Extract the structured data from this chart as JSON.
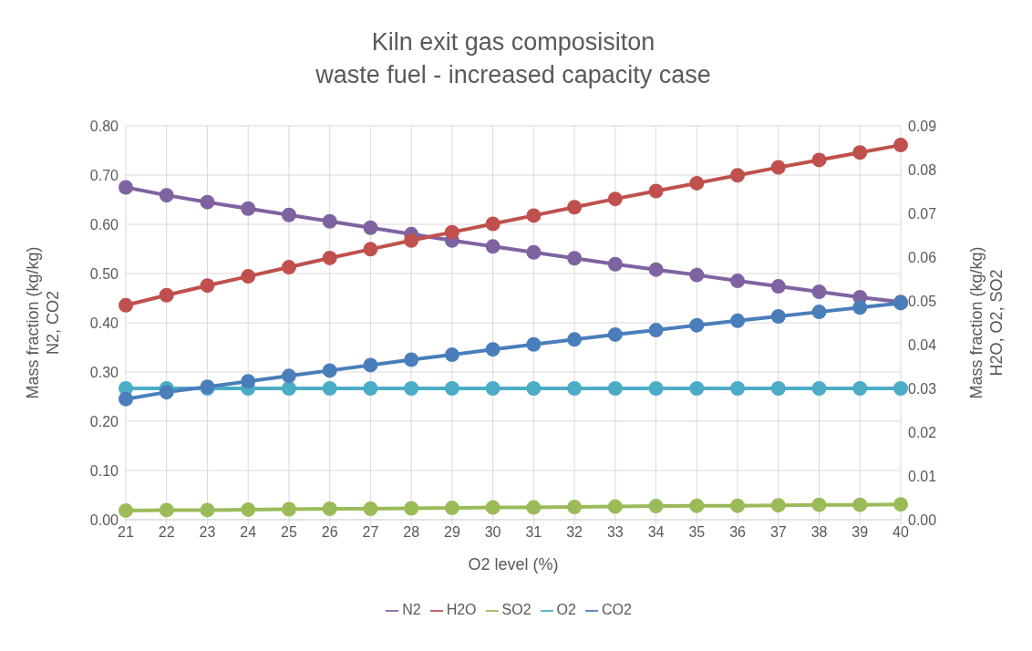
{
  "chart_data": {
    "type": "line",
    "title": "Kiln exit gas composisiton",
    "subtitle": "waste fuel - increased capacity case",
    "xlabel": "O2 level (%)",
    "ylabel": "Mass fraction (kg/kg)\nN2, CO2",
    "y2label": "Mass fraction (kg/kg)\nH2O, O2, SO2",
    "categories": [
      "21",
      "22",
      "23",
      "24",
      "25",
      "26",
      "27",
      "28",
      "29",
      "30",
      "31",
      "32",
      "33",
      "34",
      "35",
      "36",
      "37",
      "38",
      "39",
      "40"
    ],
    "series": [
      {
        "name": "CO2",
        "color": "#4a7ebb",
        "values": [
          0.245,
          0.259,
          0.27,
          0.281,
          0.292,
          0.303,
          0.314,
          0.325,
          0.335,
          0.346,
          0.356,
          0.366,
          0.376,
          0.385,
          0.395,
          0.404,
          0.413,
          0.422,
          0.431,
          0.44
        ]
      },
      {
        "name": "N2",
        "color": "#7f63a1",
        "values": [
          0.675,
          0.659,
          0.645,
          0.632,
          0.619,
          0.606,
          0.593,
          0.58,
          0.567,
          0.555,
          0.543,
          0.531,
          0.519,
          0.508,
          0.497,
          0.485,
          0.474,
          0.463,
          0.452,
          0.442
        ]
      },
      {
        "name": "H2O",
        "color": "#c0504d",
        "axis": "y2",
        "values": [
          0.049,
          0.0513,
          0.0535,
          0.0556,
          0.0577,
          0.0598,
          0.0618,
          0.0638,
          0.0657,
          0.0676,
          0.0695,
          0.0714,
          0.0733,
          0.0751,
          0.0769,
          0.0787,
          0.0805,
          0.0822,
          0.0839,
          0.0856
        ]
      },
      {
        "name": "SO2",
        "color": "#9bbb59",
        "axis": "y2",
        "values": [
          0.0021,
          0.0022,
          0.0022,
          0.0023,
          0.0024,
          0.0025,
          0.0025,
          0.0026,
          0.0027,
          0.0028,
          0.0028,
          0.0029,
          0.003,
          0.0031,
          0.0032,
          0.0032,
          0.0033,
          0.0034,
          0.0034,
          0.0035
        ]
      },
      {
        "name": "O2",
        "color": "#4bacc6",
        "axis": "y2",
        "values": [
          0.03,
          0.03,
          0.03,
          0.03,
          0.03,
          0.03,
          0.03,
          0.03,
          0.03,
          0.03,
          0.03,
          0.03,
          0.03,
          0.03,
          0.03,
          0.03,
          0.03,
          0.03,
          0.03,
          0.03
        ]
      }
    ],
    "ylim": [
      0,
      0.8
    ],
    "yticks": [
      {
        "value": 0,
        "label": "0.00"
      },
      {
        "value": 0.1,
        "label": "0.10"
      },
      {
        "value": 0.2,
        "label": "0.20"
      },
      {
        "value": 0.3,
        "label": "0.30"
      },
      {
        "value": 0.4,
        "label": "0.40"
      },
      {
        "value": 0.5,
        "label": "0.50"
      },
      {
        "value": 0.6,
        "label": "0.60"
      },
      {
        "value": 0.7,
        "label": "0.70"
      },
      {
        "value": 0.8,
        "label": "0.80"
      }
    ],
    "y2lim": [
      0,
      0.09
    ],
    "y2ticks": [
      {
        "value": 0,
        "label": "0.00"
      },
      {
        "value": 0.01,
        "label": "0.01"
      },
      {
        "value": 0.02,
        "label": "0.02"
      },
      {
        "value": 0.03,
        "label": "0.03"
      },
      {
        "value": 0.04,
        "label": "0.04"
      },
      {
        "value": 0.05,
        "label": "0.05"
      },
      {
        "value": 0.06,
        "label": "0.06"
      },
      {
        "value": 0.07,
        "label": "0.07"
      },
      {
        "value": 0.08,
        "label": "0.08"
      },
      {
        "value": 0.09,
        "label": "0.09"
      }
    ],
    "grid": true,
    "legend": "bottom",
    "marker": "circle",
    "line_style": "solid"
  }
}
